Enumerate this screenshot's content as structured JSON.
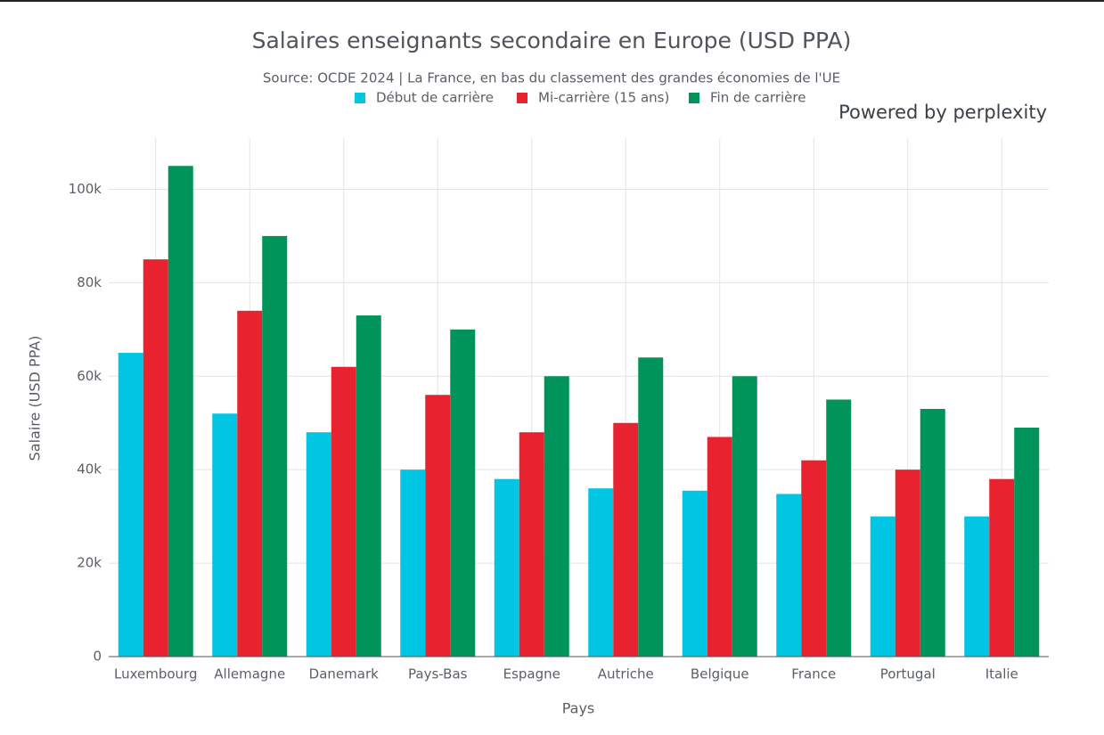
{
  "chart_data": {
    "type": "bar",
    "title": "Salaires enseignants secondaire en Europe (USD PPA)",
    "subtitle": "Source: OCDE 2024 | La France, en bas du classement des grandes économies de l'UE",
    "branding": "Powered by perplexity",
    "x_label": "Pays",
    "y_label": "Salaire (USD PPA)",
    "categories": [
      "Luxembourg",
      "Allemagne",
      "Danemark",
      "Pays-Bas",
      "Espagne",
      "Autriche",
      "Belgique",
      "France",
      "Portugal",
      "Italie"
    ],
    "series": [
      {
        "name": "Début de carrière",
        "color": "#00c6e4",
        "values": [
          65000,
          52000,
          48000,
          40000,
          38000,
          36000,
          35500,
          34800,
          30000,
          30000
        ]
      },
      {
        "name": "Mi-carrière (15 ans)",
        "color": "#e8232f",
        "values": [
          85000,
          74000,
          62000,
          56000,
          48000,
          50000,
          47000,
          42000,
          40000,
          38000
        ]
      },
      {
        "name": "Fin de carrière",
        "color": "#00935a",
        "values": [
          105000,
          90000,
          73000,
          70000,
          60000,
          64000,
          60000,
          55000,
          53000,
          49000
        ]
      }
    ],
    "ylim": [
      0,
      110000
    ],
    "yticks": [
      0,
      {
        "value": 20000,
        "label": "20k"
      },
      {
        "value": 40000,
        "label": "40k"
      },
      {
        "value": 60000,
        "label": "60k"
      },
      {
        "value": 80000,
        "label": "80k"
      },
      {
        "value": 100000,
        "label": "100k"
      }
    ],
    "grid": true,
    "legend": "top"
  }
}
